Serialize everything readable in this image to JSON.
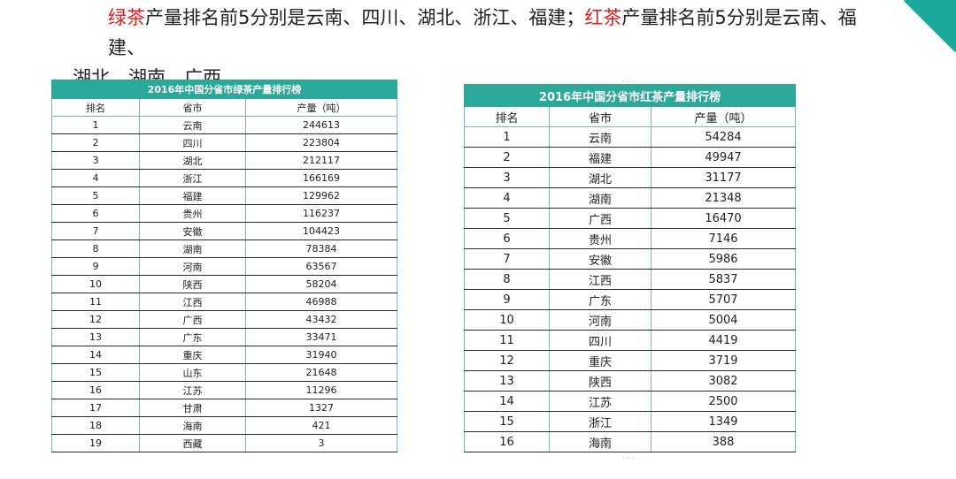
{
  "headline": {
    "green_label": "绿茶",
    "green_text": "产量排名前5分别是云南、四川、湖北、浙江、福建；",
    "red_label": "红茶",
    "red_text_1": "产量排名前5分别是云南、福建、",
    "red_text_2": "湖北、湖南、广西。"
  },
  "green_table": {
    "title": "2016年中国分省市绿茶产量排行榜",
    "headers": [
      "排名",
      "省市",
      "产量（吨）"
    ],
    "rows": [
      [
        "1",
        "云南",
        "244613"
      ],
      [
        "2",
        "四川",
        "223804"
      ],
      [
        "3",
        "湖北",
        "212117"
      ],
      [
        "4",
        "浙江",
        "166169"
      ],
      [
        "5",
        "福建",
        "129962"
      ],
      [
        "6",
        "贵州",
        "116237"
      ],
      [
        "7",
        "安徽",
        "104423"
      ],
      [
        "8",
        "湖南",
        "78384"
      ],
      [
        "9",
        "河南",
        "63567"
      ],
      [
        "10",
        "陕西",
        "58204"
      ],
      [
        "11",
        "江西",
        "46988"
      ],
      [
        "12",
        "广西",
        "43432"
      ],
      [
        "13",
        "广东",
        "33471"
      ],
      [
        "14",
        "重庆",
        "31940"
      ],
      [
        "15",
        "山东",
        "21648"
      ],
      [
        "16",
        "江苏",
        "11296"
      ],
      [
        "17",
        "甘肃",
        "1327"
      ],
      [
        "18",
        "海南",
        "421"
      ],
      [
        "19",
        "西藏",
        "3"
      ]
    ]
  },
  "red_table": {
    "title": "2016年中国分省市红茶产量排行榜",
    "headers": [
      "排名",
      "省市",
      "产量（吨）"
    ],
    "rows": [
      [
        "1",
        "云南",
        "54284"
      ],
      [
        "2",
        "福建",
        "49947"
      ],
      [
        "3",
        "湖北",
        "31177"
      ],
      [
        "4",
        "湖南",
        "21348"
      ],
      [
        "5",
        "广西",
        "16470"
      ],
      [
        "6",
        "贵州",
        "7146"
      ],
      [
        "7",
        "安徽",
        "5986"
      ],
      [
        "8",
        "江西",
        "5837"
      ],
      [
        "9",
        "广东",
        "5707"
      ],
      [
        "10",
        "河南",
        "5004"
      ],
      [
        "11",
        "四川",
        "4419"
      ],
      [
        "12",
        "重庆",
        "3719"
      ],
      [
        "13",
        "陕西",
        "3082"
      ],
      [
        "14",
        "江苏",
        "2500"
      ],
      [
        "15",
        "浙江",
        "1349"
      ],
      [
        "16",
        "海南",
        "388"
      ]
    ]
  },
  "colors": {
    "accent_red": "#e11b1b",
    "table_header_teal": "#2ca89a",
    "corner_teal": "#1aa89a"
  }
}
